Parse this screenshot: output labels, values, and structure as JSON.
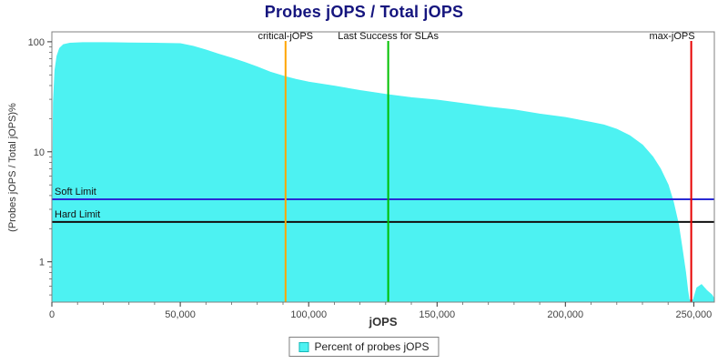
{
  "title": "Probes jOPS / Total jOPS",
  "legend": {
    "items": [
      {
        "label": "Percent of probes jOPS",
        "color": "#4DF2F2"
      }
    ]
  },
  "chart_data": {
    "type": "area",
    "title": "Probes jOPS / Total jOPS",
    "xlabel": "jOPS",
    "ylabel": "(Probes jOPS / Total jOPS)%",
    "x_scale": "linear",
    "y_scale": "log",
    "x_range": [
      0,
      258000
    ],
    "y_range": [
      0.43,
      123
    ],
    "x_ticks": [
      {
        "v": 0,
        "label": "0"
      },
      {
        "v": 50000,
        "label": "50,000"
      },
      {
        "v": 100000,
        "label": "100,000"
      },
      {
        "v": 150000,
        "label": "150,000"
      },
      {
        "v": 200000,
        "label": "200,000"
      },
      {
        "v": 250000,
        "label": "250,000"
      }
    ],
    "x_minor_step": 10000,
    "y_ticks": [
      {
        "v": 1,
        "label": "1"
      },
      {
        "v": 10,
        "label": "10"
      },
      {
        "v": 100,
        "label": "100"
      }
    ],
    "y_minor_ticks": [
      0.5,
      0.6,
      0.7,
      0.8,
      0.9,
      2,
      3,
      4,
      5,
      6,
      7,
      8,
      9,
      20,
      30,
      40,
      50,
      60,
      70,
      80,
      90
    ],
    "series": [
      {
        "name": "Percent of probes jOPS",
        "color": "#4DF2F2",
        "points": [
          [
            0,
            0.45
          ],
          [
            600,
            28
          ],
          [
            1200,
            55
          ],
          [
            2000,
            74
          ],
          [
            3000,
            87
          ],
          [
            4500,
            94
          ],
          [
            7000,
            97
          ],
          [
            12000,
            98
          ],
          [
            20000,
            98
          ],
          [
            30000,
            97.5
          ],
          [
            40000,
            97
          ],
          [
            50000,
            96
          ],
          [
            55000,
            91
          ],
          [
            60000,
            84
          ],
          [
            65000,
            77
          ],
          [
            70000,
            71
          ],
          [
            75000,
            65
          ],
          [
            80000,
            59
          ],
          [
            85000,
            53
          ],
          [
            91000,
            48
          ],
          [
            95000,
            45.5
          ],
          [
            100000,
            43
          ],
          [
            110000,
            39.5
          ],
          [
            120000,
            36
          ],
          [
            131000,
            33
          ],
          [
            140000,
            31
          ],
          [
            150000,
            29.5
          ],
          [
            160000,
            27.5
          ],
          [
            170000,
            25.5
          ],
          [
            180000,
            24
          ],
          [
            190000,
            22
          ],
          [
            200000,
            20.5
          ],
          [
            210000,
            18.5
          ],
          [
            215000,
            17.5
          ],
          [
            220000,
            16
          ],
          [
            225000,
            14
          ],
          [
            230000,
            11.5
          ],
          [
            234000,
            9
          ],
          [
            237000,
            7
          ],
          [
            240000,
            5
          ],
          [
            242000,
            3.5
          ],
          [
            244000,
            2.2
          ],
          [
            245500,
            1.3
          ],
          [
            246800,
            0.8
          ],
          [
            247600,
            0.55
          ],
          [
            248200,
            0.45
          ],
          [
            249800,
            0.45
          ],
          [
            251200,
            0.58
          ],
          [
            253000,
            0.62
          ],
          [
            255000,
            0.55
          ],
          [
            257000,
            0.5
          ],
          [
            258000,
            0.46
          ]
        ]
      }
    ],
    "vlines": [
      {
        "x": 91000,
        "color": "#FFA500",
        "label": "critical-jOPS",
        "anchor": "middle"
      },
      {
        "x": 131000,
        "color": "#00C000",
        "label": "Last Success for SLAs",
        "anchor": "middle"
      },
      {
        "x": 249000,
        "color": "#E60000",
        "label": "max-jOPS",
        "anchor": "end"
      }
    ],
    "hlines": [
      {
        "y": 3.7,
        "color": "#2A2AD4",
        "label": "Soft Limit"
      },
      {
        "y": 2.3,
        "color": "#101010",
        "label": "Hard Limit"
      }
    ]
  }
}
